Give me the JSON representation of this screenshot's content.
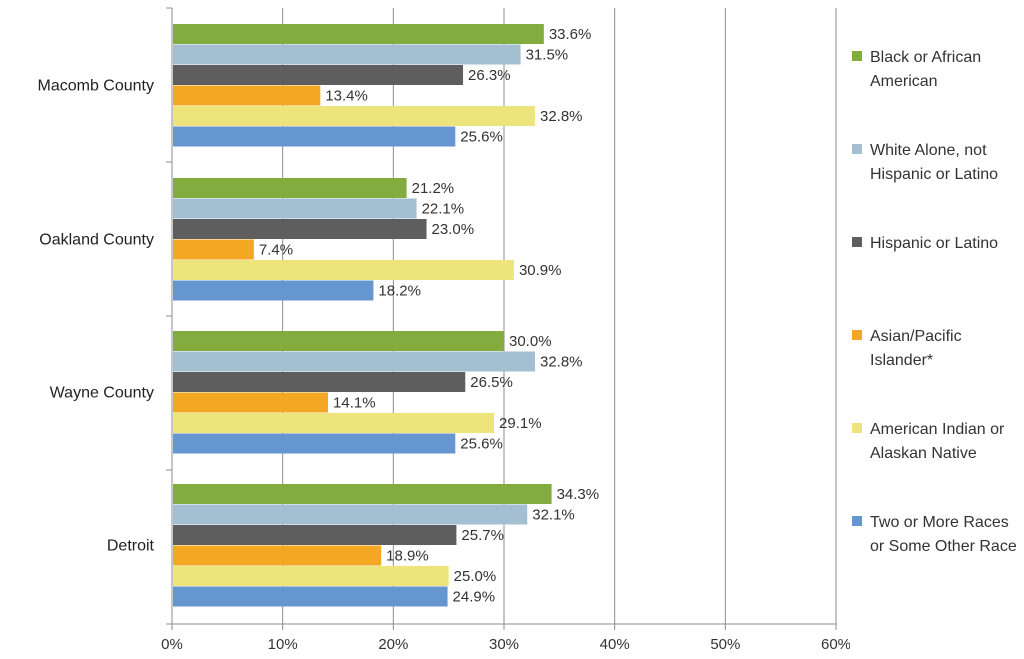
{
  "chart_data": {
    "type": "bar",
    "orientation": "horizontal",
    "categories": [
      "Macomb County",
      "Oakland County",
      "Wayne County",
      "Detroit"
    ],
    "series": [
      {
        "name": "Black or African American",
        "color": "#82ac3e",
        "values": [
          33.6,
          21.2,
          30.0,
          34.3
        ]
      },
      {
        "name": "White Alone, not Hispanic or Latino",
        "color": "#a5bfd2",
        "values": [
          31.5,
          22.1,
          32.8,
          32.1
        ]
      },
      {
        "name": "Hispanic or Latino",
        "color": "#5e5e5e",
        "values": [
          26.3,
          23.0,
          26.5,
          25.7
        ]
      },
      {
        "name": "Asian/Pacific Islander*",
        "color": "#f3a723",
        "values": [
          13.4,
          7.4,
          14.1,
          18.9
        ]
      },
      {
        "name": "American Indian or Alaskan Native",
        "color": "#ede57c",
        "values": [
          32.8,
          30.9,
          29.1,
          25.0
        ]
      },
      {
        "name": "Two or More Races or Some Other Race",
        "color": "#6696d0",
        "values": [
          25.6,
          18.2,
          25.6,
          24.9
        ]
      }
    ],
    "value_labels": [
      [
        "33.6%",
        "21.2%",
        "30.0%",
        "34.3%"
      ],
      [
        "31.5%",
        "22.1%",
        "32.8%",
        "32.1%"
      ],
      [
        "26.3%",
        "23.0%",
        "26.5%",
        "25.7%"
      ],
      [
        "13.4%",
        "7.4%",
        "14.1%",
        "18.9%"
      ],
      [
        "32.8%",
        "30.9%",
        "29.1%",
        "25.0%"
      ],
      [
        "25.6%",
        "18.2%",
        "25.6%",
        "24.9%"
      ]
    ],
    "x_ticks": [
      "0%",
      "10%",
      "20%",
      "30%",
      "40%",
      "50%",
      "60%"
    ],
    "xlim": [
      0,
      60
    ],
    "grid": "vertical",
    "legend_position": "right",
    "legend": [
      {
        "lines": [
          "Black or African",
          "American"
        ],
        "color": "#82ac3e"
      },
      {
        "lines": [
          "White Alone, not",
          "Hispanic or Latino"
        ],
        "color": "#a5bfd2"
      },
      {
        "lines": [
          "Hispanic or Latino"
        ],
        "color": "#5e5e5e"
      },
      {
        "lines": [
          "Asian/Pacific",
          "Islander*"
        ],
        "color": "#f3a723"
      },
      {
        "lines": [
          "American Indian or",
          "Alaskan Native"
        ],
        "color": "#ede57c"
      },
      {
        "lines": [
          "Two or More Races",
          "or Some Other Race"
        ],
        "color": "#6696d0"
      }
    ]
  }
}
